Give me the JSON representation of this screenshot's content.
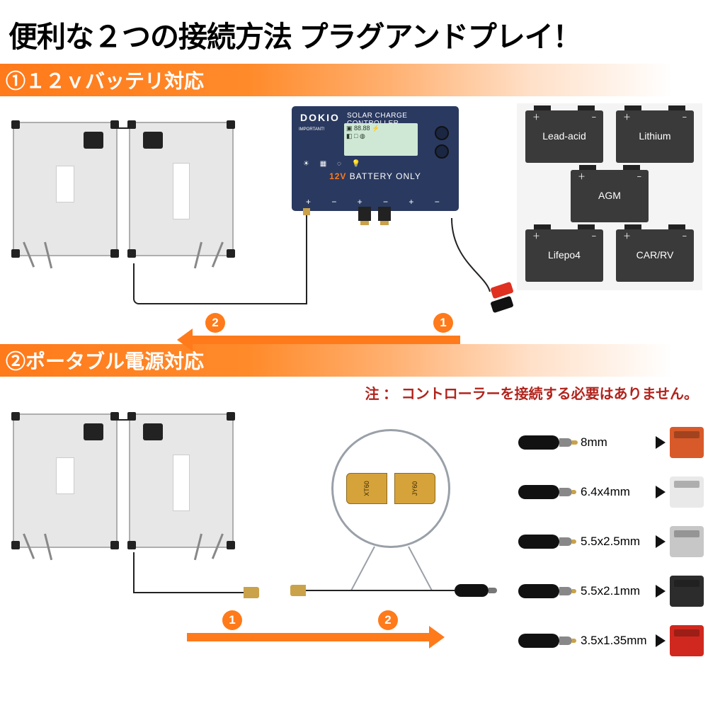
{
  "title": "便利な２つの接続方法 プラグアンドプレイ！",
  "section1": {
    "header": "①１２ｖバッテリ対応",
    "controller": {
      "brand": "DOKIO",
      "top_label": "SOLAR CHARGE CONTROLLER",
      "important": "IMPORTANT!",
      "lcd_line1": "▣ 88.88 ⚡",
      "lcd_line2": "◧ □ ◍",
      "battery_text": "BATTERY ONLY",
      "voltage": "12V"
    },
    "step2": "2",
    "step1": "1",
    "batteries": [
      "Lead-acid",
      "Lithium",
      "AGM",
      "Lifepo4",
      "CAR/RV"
    ]
  },
  "section2": {
    "header": "②ポータブル電源対応",
    "note": "注 ： コントローラーを接続する必要はありません。",
    "xt60_left": "XT60",
    "xt60_right": "JY60",
    "step1": "1",
    "step2": "2",
    "connectors": [
      {
        "label": "8mm",
        "device_color": "#d85a2a"
      },
      {
        "label": "6.4x4mm",
        "device_color": "#e9e9e9"
      },
      {
        "label": "5.5x2.5mm",
        "device_color": "#c7c7c7"
      },
      {
        "label": "5.5x2.1mm",
        "device_color": "#2c2c2c"
      },
      {
        "label": "3.5x1.35mm",
        "device_color": "#d0281e"
      }
    ]
  },
  "colors": {
    "accent": "#ff7a1a",
    "controller_bg": "#2a3960",
    "battery_bg": "#3a3a3a",
    "note_color": "#b1231c"
  }
}
